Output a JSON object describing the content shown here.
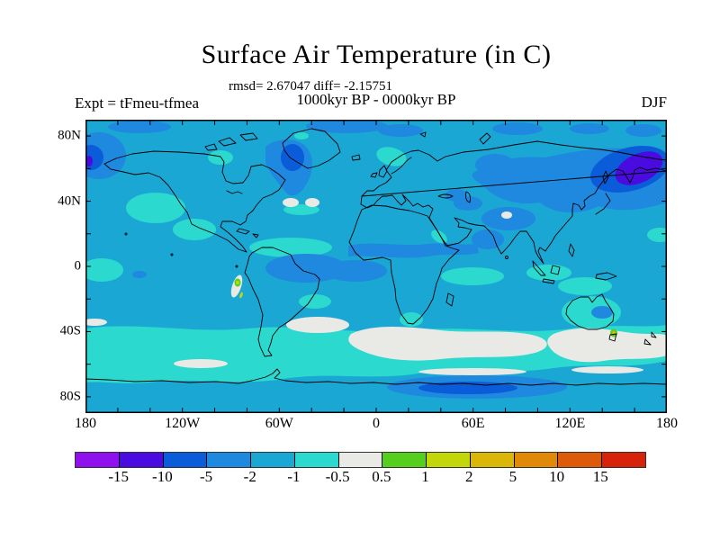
{
  "figure": {
    "title": "Surface Air Temperature (in C)",
    "stats_line": "rmsd= 2.67047 diff= -2.15751",
    "period_line": "1000kyr BP - 0000kyr BP",
    "experiment_label": "Expt = tFmeu-tfmea",
    "season_label": "DJF"
  },
  "chart_data": {
    "type": "heatmap",
    "subtype": "filled-contour-world-map",
    "title": "Surface Air Temperature (in C)",
    "stats": {
      "rmsd": "2.67047",
      "diff": "-2.15751"
    },
    "period": "1000kyr BP - 0000kyr BP",
    "experiment": "tFmeu-tfmea",
    "season": "DJF",
    "units": "C",
    "projection": "equirectangular",
    "lon_range_deg": [
      -180,
      180
    ],
    "lat_range_deg": [
      -90,
      90
    ],
    "x_axis": {
      "tick_labels": [
        "180",
        "120W",
        "60W",
        "0",
        "60E",
        "120E",
        "180"
      ],
      "tick_lons_deg": [
        -180,
        -120,
        -60,
        0,
        60,
        120,
        180
      ],
      "minor_tick_step_deg": 20
    },
    "y_axis": {
      "tick_labels": [
        "80N",
        "40N",
        "0",
        "40S",
        "80S"
      ],
      "tick_lats_deg": [
        80,
        40,
        0,
        -40,
        -80
      ],
      "minor_tick_step_deg": 20
    },
    "colorbar": {
      "level_labels": [
        "-15",
        "-10",
        "-5",
        "-2",
        "-1",
        "-0.5",
        "0.5",
        "1",
        "2",
        "5",
        "10",
        "15"
      ],
      "levels": [
        -15,
        -10,
        -5,
        -2,
        -1,
        -0.5,
        0.5,
        1,
        2,
        5,
        10,
        15
      ],
      "colors": [
        "#8F11EE",
        "#4A0BE0",
        "#0B5CD9",
        "#1F88DF",
        "#1BA7D4",
        "#2BD9CE",
        "#E9E9E6",
        "#55CE1E",
        "#C3D60A",
        "#D9B607",
        "#E08808",
        "#DC5A0A",
        "#D8230B"
      ]
    },
    "map_observations": {
      "dominant_band_c": "-2 to -0.5",
      "coldest_regions": [
        "Sea of Okhotsk / NW Pacific (-15 to -10)",
        "Bering Sea at map edge (-15 to -10)",
        "Labrador Sea / Davis Strait (-10 to -5)",
        "East Antarctic coastal band (-10 to -5)"
      ],
      "near_zero_regions": [
        "Southern Ocean mid-latitudes (-0.5 to 0.5)",
        "Subtropical North Atlantic patches (-0.5 to 0.5)",
        "Tibetan Plateau spot (-0.5 to 0.5)"
      ],
      "warm_spots": [
        "Peru coast (0.5 to 2)",
        "Tasmania (0.5 to 5)"
      ]
    }
  }
}
